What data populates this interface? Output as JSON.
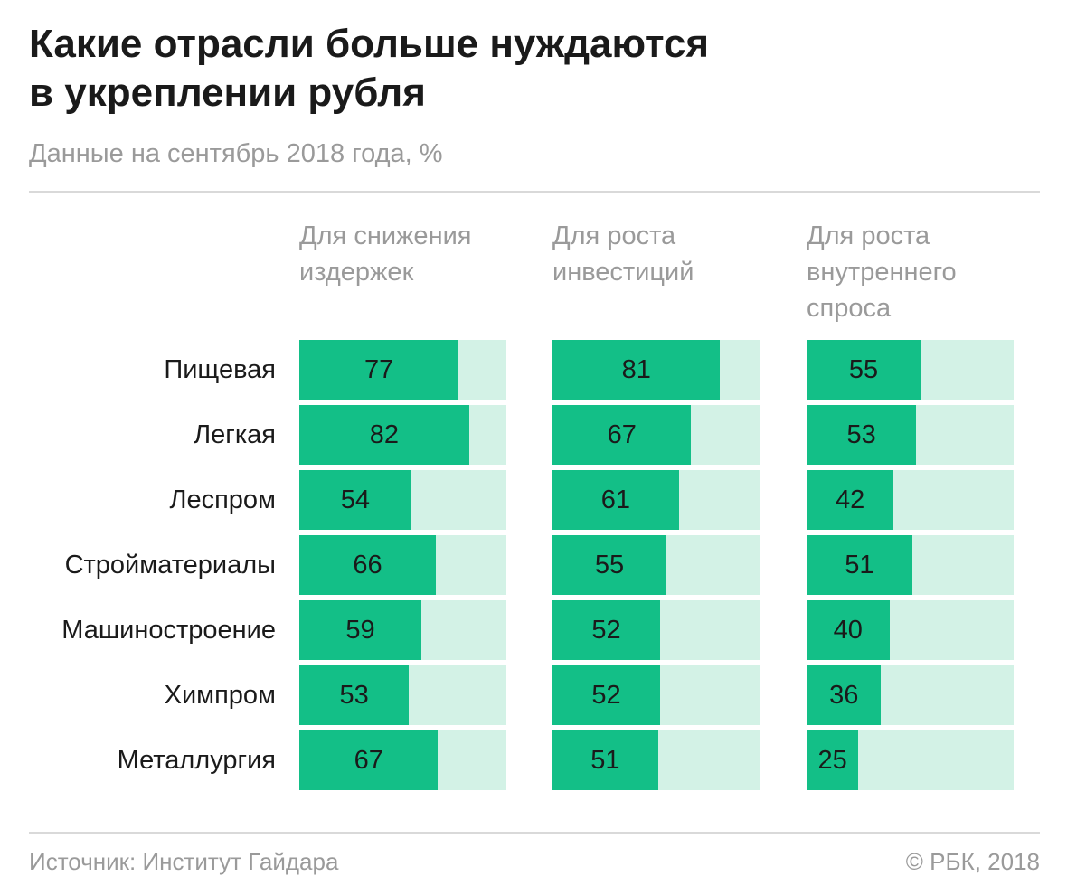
{
  "colors": {
    "fill": "#13bf87",
    "track": "#d3f2e6",
    "text": "#1a1a1a",
    "muted": "#9a9a9a"
  },
  "chart_data": {
    "type": "bar",
    "orientation": "horizontal",
    "title_lines": [
      "Какие отрасли больше нуждаются",
      "в укреплении рубля"
    ],
    "subtitle": "Данные на сентябрь 2018 года, %",
    "categories": [
      "Пищевая",
      "Легкая",
      "Леспром",
      "Стройматериалы",
      "Машиностроение",
      "Химпром",
      "Металлургия"
    ],
    "xlim": [
      0,
      100
    ],
    "grid": false,
    "series": [
      {
        "name": "Для снижения издержек",
        "header_lines": [
          "Для снижения",
          "издержек"
        ],
        "values": [
          77,
          82,
          54,
          66,
          59,
          53,
          67
        ]
      },
      {
        "name": "Для роста инвестиций",
        "header_lines": [
          "Для роста",
          "инвестиций"
        ],
        "values": [
          81,
          67,
          61,
          55,
          52,
          52,
          51
        ]
      },
      {
        "name": "Для роста внутреннего спроса",
        "header_lines": [
          "Для роста",
          "внутреннего",
          "спроса"
        ],
        "values": [
          55,
          53,
          42,
          51,
          40,
          36,
          25
        ]
      }
    ]
  },
  "footer": {
    "source": "Источник: Институт Гайдара",
    "copyright": "© РБК, 2018"
  }
}
